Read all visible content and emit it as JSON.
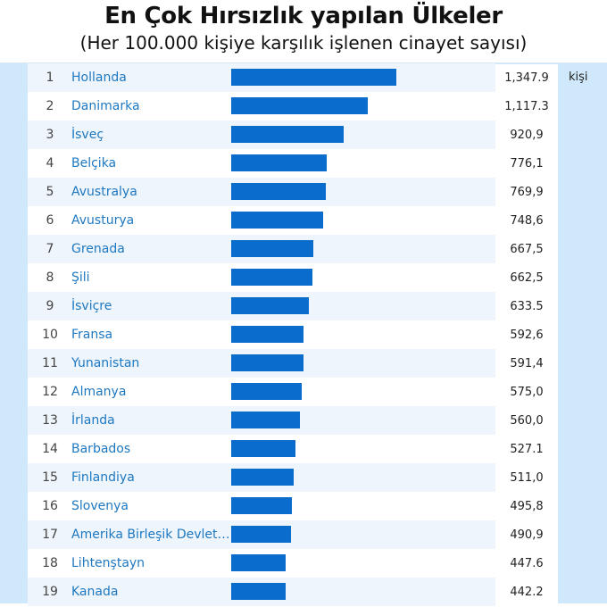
{
  "title": "En Çok Hırsızlık yapılan Ülkeler",
  "subtitle": "(Her 100.000 kişiye karşılık işlenen cinayet sayısı)",
  "unit": "kişi",
  "colors": {
    "bar": "#0a6ccd",
    "country": "#1e78c0",
    "frame": "#cfe8fb",
    "row_alt": "#eef5fc"
  },
  "chart_data": {
    "type": "bar",
    "orientation": "horizontal",
    "title": "En Çok Hırsızlık yapılan Ülkeler",
    "subtitle": "(Her 100.000 kişiye karşılık işlenen cinayet sayısı)",
    "xlim": [
      0,
      1600
    ],
    "grid": false,
    "rows": [
      {
        "rank": "1",
        "name": "Hollanda",
        "value": 1347.9,
        "label": "1,347.9"
      },
      {
        "rank": "2",
        "name": "Danimarka",
        "value": 1117.3,
        "label": "1,117.3"
      },
      {
        "rank": "3",
        "name": "İsveç",
        "value": 920.9,
        "label": "920,9"
      },
      {
        "rank": "4",
        "name": "Belçika",
        "value": 776.1,
        "label": "776,1"
      },
      {
        "rank": "5",
        "name": "Avustralya",
        "value": 769.9,
        "label": "769,9"
      },
      {
        "rank": "6",
        "name": "Avusturya",
        "value": 748.6,
        "label": "748,6"
      },
      {
        "rank": "7",
        "name": "Grenada",
        "value": 667.5,
        "label": "667,5"
      },
      {
        "rank": "8",
        "name": "Şili",
        "value": 662.5,
        "label": "662,5"
      },
      {
        "rank": "9",
        "name": "İsviçre",
        "value": 633.5,
        "label": "633.5"
      },
      {
        "rank": "10",
        "name": "Fransa",
        "value": 592.6,
        "label": "592,6"
      },
      {
        "rank": "11",
        "name": "Yunanistan",
        "value": 591.4,
        "label": "591,4"
      },
      {
        "rank": "12",
        "name": "Almanya",
        "value": 575.0,
        "label": "575,0"
      },
      {
        "rank": "13",
        "name": "İrlanda",
        "value": 560.0,
        "label": "560,0"
      },
      {
        "rank": "14",
        "name": "Barbados",
        "value": 527.1,
        "label": "527.1"
      },
      {
        "rank": "15",
        "name": "Finlandiya",
        "value": 511.0,
        "label": "511,0"
      },
      {
        "rank": "16",
        "name": "Slovenya",
        "value": 495.8,
        "label": "495,8"
      },
      {
        "rank": "17",
        "name": "Amerika Birleşik Devletl...",
        "value": 490.9,
        "label": "490,9"
      },
      {
        "rank": "18",
        "name": "Lihtenştayn",
        "value": 447.6,
        "label": "447.6"
      },
      {
        "rank": "19",
        "name": "Kanada",
        "value": 442.2,
        "label": "442.2"
      }
    ]
  }
}
